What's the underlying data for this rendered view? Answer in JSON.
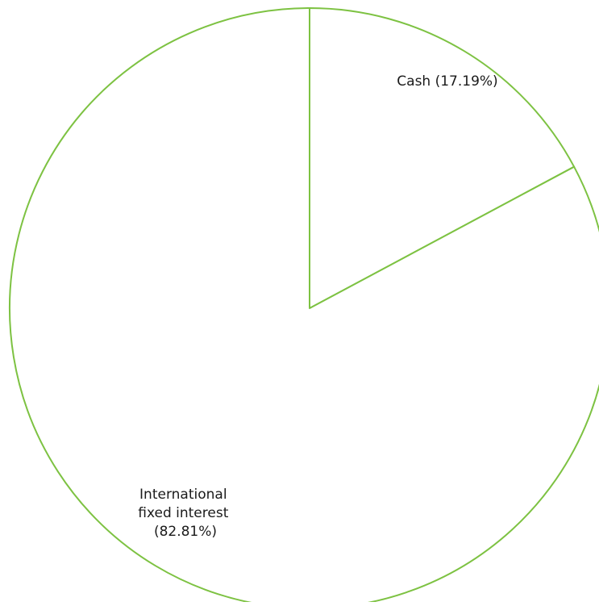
{
  "chart_data": {
    "type": "pie",
    "title": "",
    "start_angle_deg": 0,
    "direction": "clockwise",
    "fill": "#ffffff",
    "stroke": "#7dc242",
    "slices": [
      {
        "label": "Cash (17.19%)",
        "value": 17.19
      },
      {
        "label_lines": [
          "International",
          "fixed interest",
          "(82.81%)"
        ],
        "value": 82.81
      }
    ]
  }
}
